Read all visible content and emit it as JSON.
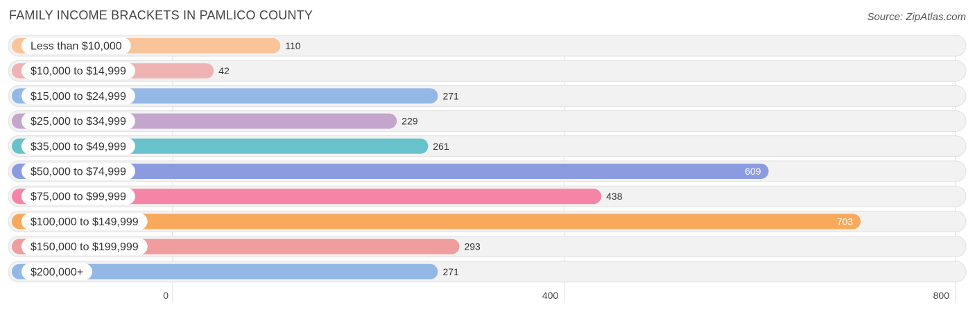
{
  "header": {
    "title": "FAMILY INCOME BRACKETS IN PAMLICO COUNTY",
    "source": "Source: ZipAtlas.com"
  },
  "chart_data": {
    "type": "bar",
    "orientation": "horizontal",
    "title": "FAMILY INCOME BRACKETS IN PAMLICO COUNTY",
    "categories": [
      "Less than $10,000",
      "$10,000 to $14,999",
      "$15,000 to $24,999",
      "$25,000 to $34,999",
      "$35,000 to $49,999",
      "$50,000 to $74,999",
      "$75,000 to $99,999",
      "$100,000 to $149,999",
      "$150,000 to $199,999",
      "$200,000+"
    ],
    "values": [
      110,
      42,
      271,
      229,
      261,
      609,
      438,
      703,
      293,
      271
    ],
    "colors": [
      "#f9c49a",
      "#f0b3b3",
      "#93b8e6",
      "#c4a5cc",
      "#67c2cb",
      "#8b9be0",
      "#f584a6",
      "#f8a95c",
      "#ef9d9d",
      "#93b8e6"
    ],
    "xlim": [
      0,
      800
    ],
    "xticks": [
      0,
      400,
      800
    ],
    "xlabel": "",
    "ylabel": "",
    "grid": true
  }
}
